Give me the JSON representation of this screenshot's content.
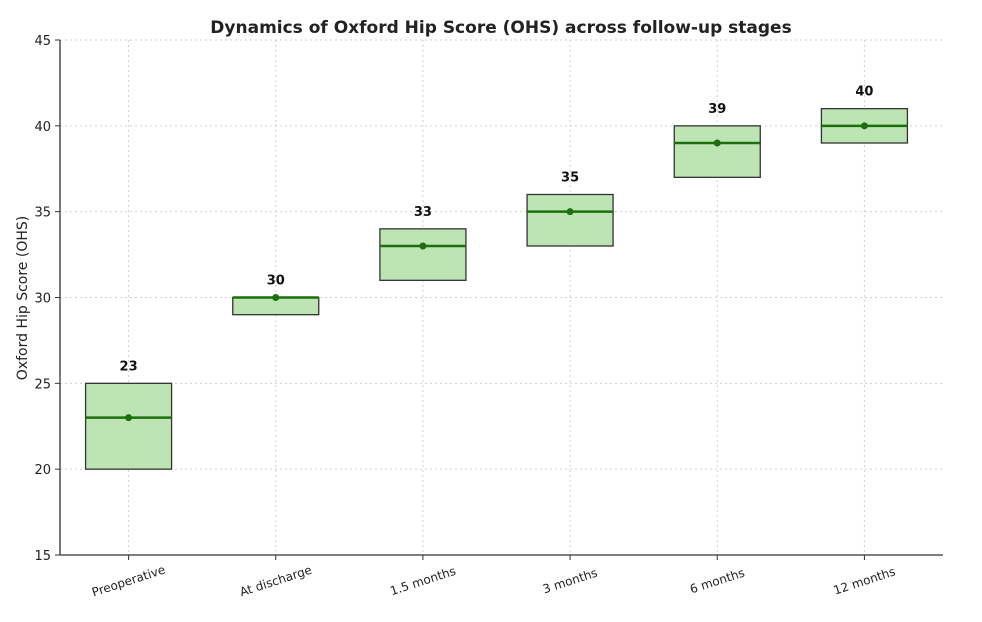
{
  "chart_data": {
    "type": "box",
    "title": "Dynamics of Oxford Hip Score (OHS) across follow-up stages",
    "xlabel": "",
    "ylabel": "Oxford Hip Score (OHS)",
    "ylim": [
      15,
      45
    ],
    "yticks": [
      15,
      20,
      25,
      30,
      35,
      40,
      45
    ],
    "grid": true,
    "categories": [
      "Preoperative",
      "At discharge",
      "1.5 months",
      "3 months",
      "6 months",
      "12 months"
    ],
    "median": [
      23,
      30,
      33,
      35,
      39,
      40
    ],
    "q1": [
      20,
      29,
      31,
      33,
      37,
      39
    ],
    "q3": [
      25,
      30,
      34,
      36,
      40,
      41
    ],
    "data_labels": [
      "23",
      "30",
      "33",
      "35",
      "39",
      "40"
    ],
    "colors": {
      "box_fill": "#bde5b4",
      "box_edge": "#333333",
      "median": "#1e6e0f",
      "grid": "#d0d0d0",
      "axis": "#333333"
    }
  }
}
